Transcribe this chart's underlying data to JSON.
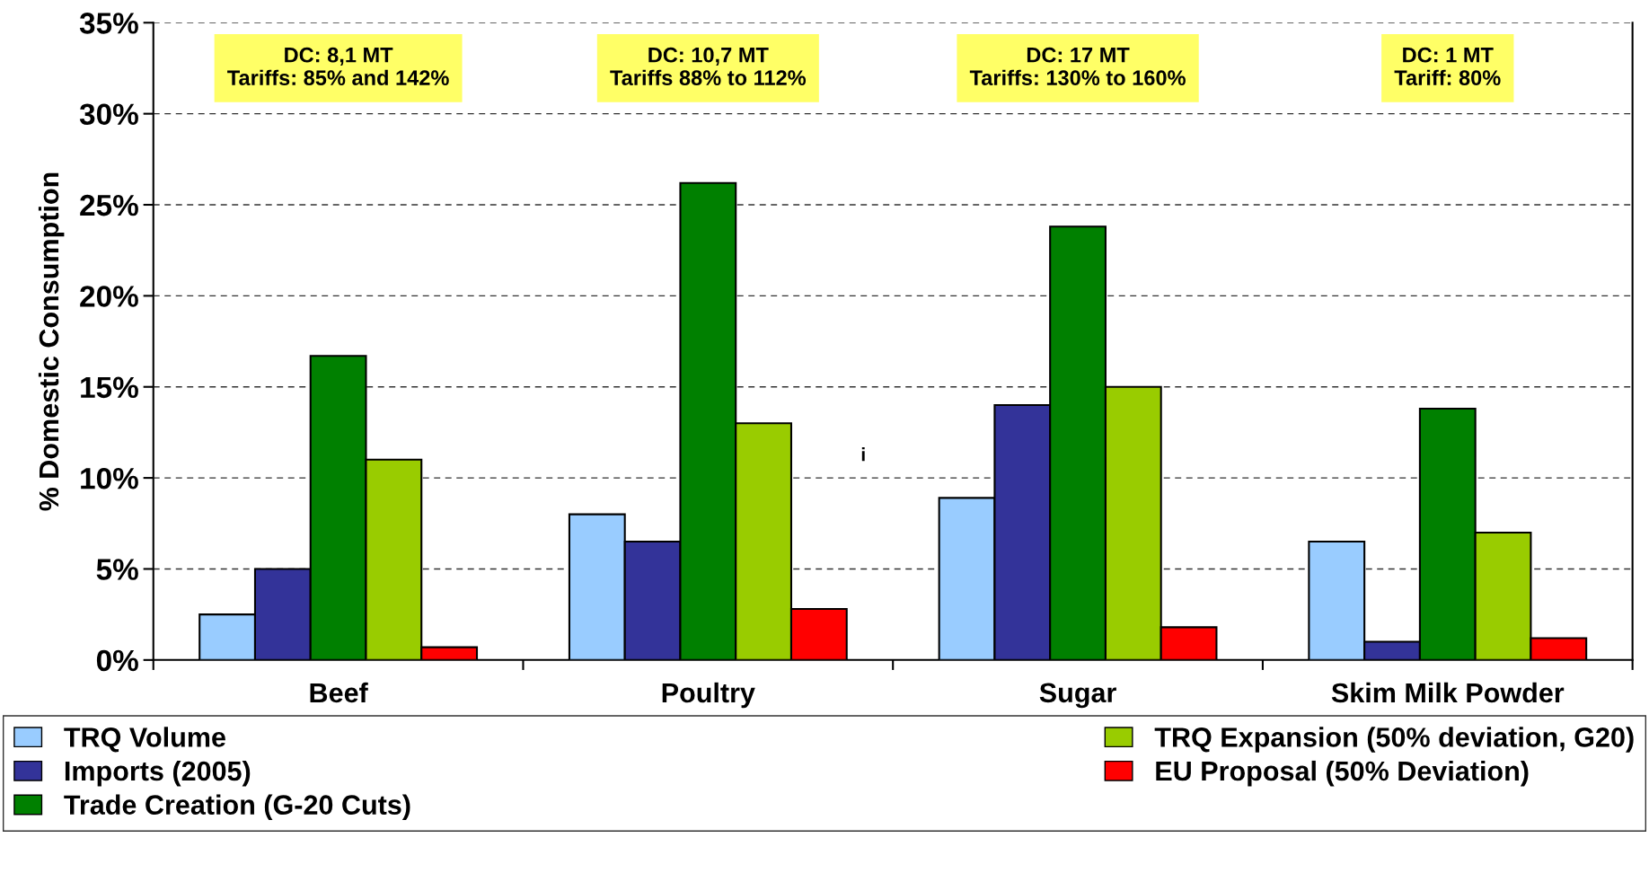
{
  "chart_data": {
    "type": "bar",
    "ylabel": "% Domestic Consumption",
    "categories": [
      "Beef",
      "Poultry",
      "Sugar",
      "Skim Milk Powder"
    ],
    "series": [
      {
        "name": "TRQ Volume",
        "color": "#99ccff",
        "values": [
          2.5,
          8.0,
          8.9,
          6.5
        ]
      },
      {
        "name": "Imports (2005)",
        "color": "#333399",
        "values": [
          5.0,
          6.5,
          14.0,
          1.0
        ]
      },
      {
        "name": "Trade Creation (G-20 Cuts)",
        "color": "#008000",
        "values": [
          16.7,
          26.2,
          23.8,
          13.8
        ]
      },
      {
        "name": "TRQ Expansion (50% deviation, G20)",
        "color": "#99cc00",
        "values": [
          11.0,
          13.0,
          15.0,
          7.0
        ]
      },
      {
        "name": "EU Proposal (50% Deviation)",
        "color": "#ff0000",
        "values": [
          0.7,
          2.8,
          1.8,
          1.2
        ]
      }
    ],
    "ylim": [
      0,
      35
    ],
    "yticks": [
      {
        "value": 0,
        "label": "0%"
      },
      {
        "value": 5,
        "label": "5%"
      },
      {
        "value": 10,
        "label": "10%"
      },
      {
        "value": 15,
        "label": "15%"
      },
      {
        "value": 20,
        "label": "20%"
      },
      {
        "value": 25,
        "label": "25%"
      },
      {
        "value": 30,
        "label": "30%"
      },
      {
        "value": 35,
        "label": "35%"
      }
    ],
    "grid": "y",
    "legend": "bottom",
    "annotations": [
      "DC: 8,1 MT\nTariffs: 85% and 142%",
      "DC: 10,7 MT\nTariffs 88% to 112%",
      "DC: 17 MT\nTariffs: 130% to 160%",
      "DC: 1 MT\nTariff: 80%",
      "i"
    ]
  }
}
